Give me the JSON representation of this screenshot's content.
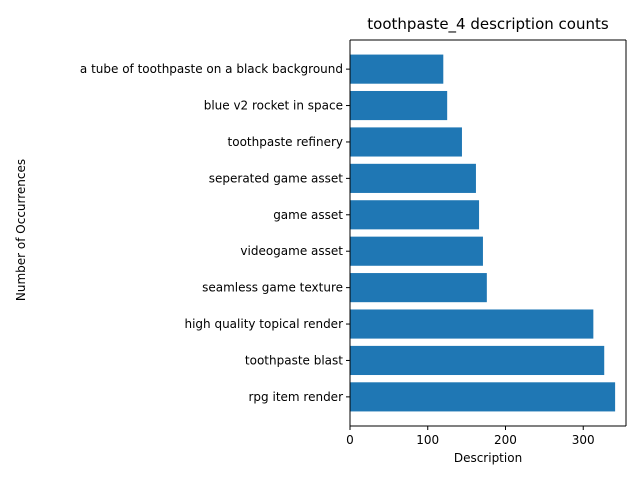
{
  "chart_data": {
    "type": "bar",
    "orientation": "horizontal",
    "title": "toothpaste_4 description counts",
    "xlabel": "Description",
    "ylabel": "Number of Occurrences",
    "xlim": [
      0,
      355
    ],
    "xticks": [
      0,
      100,
      200,
      300
    ],
    "categories": [
      "rpg item render",
      "toothpaste blast",
      "high quality topical render",
      "seamless game texture",
      "videogame asset",
      "game asset",
      "seperated game asset",
      "toothpaste refinery",
      "blue v2 rocket in space",
      "a tube of toothpaste on a black background"
    ],
    "values": [
      341,
      327,
      313,
      176,
      171,
      166,
      162,
      144,
      125,
      120
    ],
    "bar_color": "#1f77b4",
    "grid": false,
    "legend": "none"
  }
}
